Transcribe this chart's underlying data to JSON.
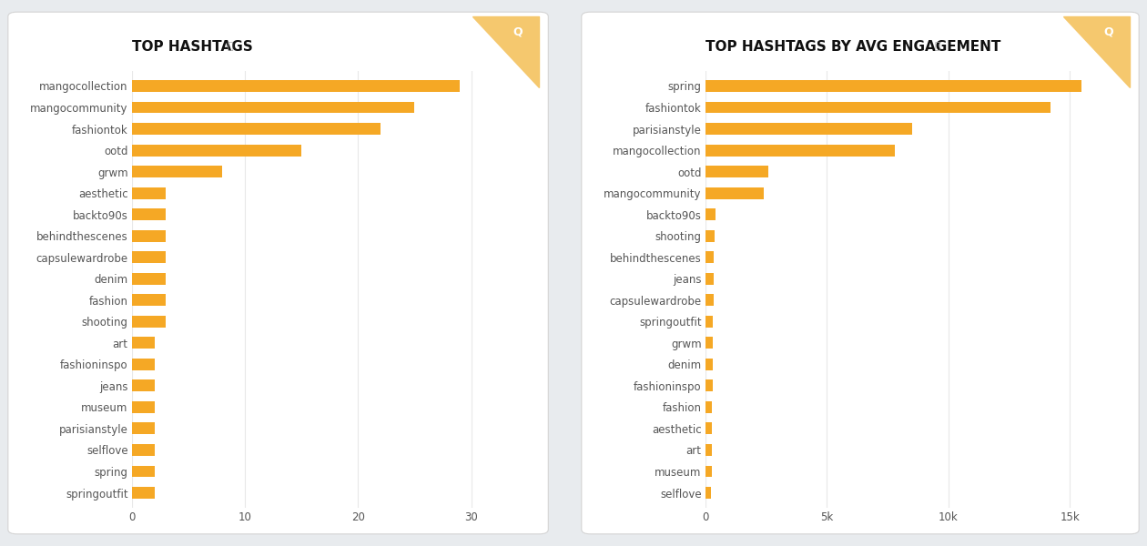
{
  "chart1_title": "TOP HASHTAGS",
  "chart1_categories": [
    "mangocollection",
    "mangocommunity",
    "fashiontok",
    "ootd",
    "grwm",
    "aesthetic",
    "backto90s",
    "behindthescenes",
    "capsulewardrobe",
    "denim",
    "fashion",
    "shooting",
    "art",
    "fashioninspo",
    "jeans",
    "museum",
    "parisianstyle",
    "selflove",
    "spring",
    "springoutfit"
  ],
  "chart1_values": [
    29,
    25,
    22,
    15,
    8,
    3,
    3,
    3,
    3,
    3,
    3,
    3,
    2,
    2,
    2,
    2,
    2,
    2,
    2,
    2
  ],
  "chart1_xlim": [
    0,
    35
  ],
  "chart1_xticks": [
    0,
    10,
    20,
    30
  ],
  "chart1_xtick_labels": [
    "0",
    "10",
    "20",
    "30"
  ],
  "chart2_title": "TOP HASHTAGS BY AVG ENGAGEMENT",
  "chart2_categories": [
    "spring",
    "fashiontok",
    "parisianstyle",
    "mangocollection",
    "ootd",
    "mangocommunity",
    "backto90s",
    "shooting",
    "behindthescenes",
    "jeans",
    "capsulewardrobe",
    "springoutfit",
    "grwm",
    "denim",
    "fashioninspo",
    "fashion",
    "aesthetic",
    "art",
    "museum",
    "selflove"
  ],
  "chart2_values": [
    15500,
    14200,
    8500,
    7800,
    2600,
    2400,
    400,
    380,
    350,
    340,
    330,
    320,
    310,
    300,
    290,
    280,
    270,
    260,
    250,
    240
  ],
  "chart2_xlim": [
    0,
    17000
  ],
  "chart2_xticks": [
    0,
    5000,
    10000,
    15000
  ],
  "chart2_xtick_labels": [
    "0",
    "5k",
    "10k",
    "15k"
  ],
  "bar_color": "#F5A825",
  "bar_height": 0.55,
  "bg_color": "#e8ebee",
  "panel_color": "#ffffff",
  "title_fontsize": 11,
  "tick_fontsize": 8.5,
  "label_fontsize": 8.5,
  "title_color": "#111111",
  "label_color": "#555555",
  "grid_color": "#e8e8e8",
  "corner_triangle_color": "#F5C86E"
}
